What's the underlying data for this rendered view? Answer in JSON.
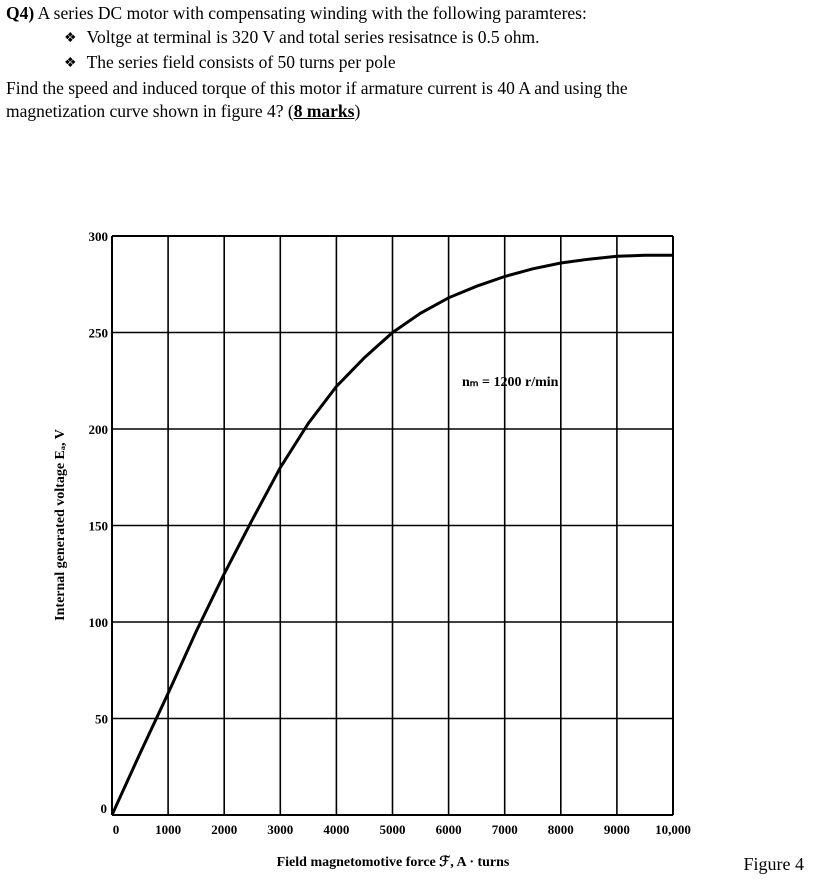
{
  "question": {
    "number": "Q4)",
    "intro": "A series DC motor with compensating winding with the following paramteres:",
    "bullets": [
      "Voltge at terminal is 320 V and total series resisatnce is 0.5 ohm.",
      "The series field consists of 50 turns per pole"
    ],
    "task_line1": "Find the speed and induced torque of this motor if armature current is 40 A and using the",
    "task_line2_pre": "magnetization curve shown in figure 4? (",
    "marks": "8 marks",
    "task_line2_post": ")",
    "bullet_icon": "diamond-bullet-icon"
  },
  "figure_caption": "Figure 4",
  "chart_data": {
    "type": "line",
    "title": "",
    "annotation": "n_m = 1200 r/min",
    "xlabel": "Field magnetomotive force ℱ, A · turns",
    "ylabel": "Internal generated voltage E_A, V",
    "xlim": [
      0,
      10000
    ],
    "ylim": [
      0,
      300
    ],
    "xticks": [
      "0",
      "1000",
      "2000",
      "3000",
      "4000",
      "5000",
      "6000",
      "7000",
      "8000",
      "9000",
      "10,000"
    ],
    "yticks": [
      "0",
      "50",
      "100",
      "150",
      "200",
      "250",
      "300"
    ],
    "grid": true,
    "series": [
      {
        "name": "Magnetization curve",
        "x": [
          0,
          500,
          1000,
          1500,
          2000,
          2500,
          3000,
          3500,
          4000,
          4500,
          5000,
          5500,
          6000,
          6500,
          7000,
          7500,
          8000,
          8500,
          9000,
          9500,
          10000
        ],
        "y": [
          0,
          32,
          63,
          95,
          125,
          153,
          180,
          203,
          222,
          237,
          250,
          260,
          268,
          274,
          279,
          283,
          286,
          288,
          289.5,
          290,
          290
        ]
      }
    ]
  }
}
